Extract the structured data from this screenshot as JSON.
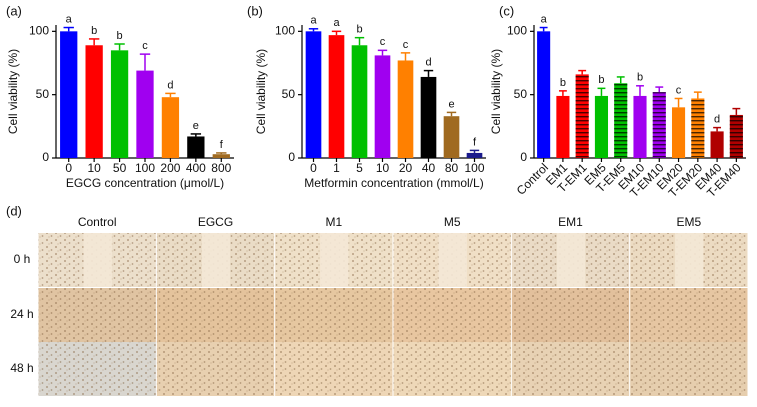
{
  "chart_data": [
    {
      "type": "bar",
      "panel": "(a)",
      "y_label": "Cell viability (%)",
      "x_label": "EGCG concentration (μmol/L)",
      "categories": [
        "0",
        "10",
        "50",
        "100",
        "200",
        "400",
        "800"
      ],
      "values": [
        100,
        89,
        85,
        69,
        48,
        17,
        3
      ],
      "errors": [
        3,
        5,
        5,
        13,
        3,
        2,
        1
      ],
      "annotations": [
        "a",
        "b",
        "b",
        "c",
        "d",
        "e",
        "f"
      ],
      "colors": [
        "#0000ff",
        "#ff0000",
        "#00c000",
        "#a000f0",
        "#ff8000",
        "#000000",
        "#a06a20"
      ],
      "ylim": [
        0,
        105
      ],
      "yticks": [
        0,
        50,
        100
      ]
    },
    {
      "type": "bar",
      "panel": "(b)",
      "y_label": "Cell viability (%)",
      "x_label": "Metformin concentration (mmol/L)",
      "categories": [
        "0",
        "1",
        "5",
        "10",
        "20",
        "40",
        "80",
        "100"
      ],
      "values": [
        100,
        97,
        89,
        81,
        77,
        64,
        33,
        4
      ],
      "errors": [
        2,
        3,
        6,
        4,
        6,
        5,
        3,
        2
      ],
      "annotations": [
        "a",
        "a",
        "b",
        "c",
        "c",
        "d",
        "e",
        "f"
      ],
      "colors": [
        "#0000ff",
        "#ff0000",
        "#00c000",
        "#a000f0",
        "#ff8000",
        "#000000",
        "#a06a20",
        "#1a1a8c"
      ],
      "ylim": [
        0,
        105
      ],
      "yticks": [
        0,
        50,
        100
      ]
    },
    {
      "type": "bar",
      "panel": "(c)",
      "y_label": "Cell viability (%)",
      "categories": [
        "Control",
        "EM1",
        "T-EM1",
        "EM5",
        "T-EM5",
        "EM10",
        "T-EM10",
        "EM20",
        "T-EM20",
        "EM40",
        "T-EM40"
      ],
      "values": [
        100,
        49,
        66,
        49,
        59,
        49,
        52,
        40,
        47,
        21,
        34
      ],
      "errors": [
        3,
        4,
        3,
        6,
        5,
        8,
        4,
        7,
        5,
        3,
        5
      ],
      "annotations": [
        "a",
        "b",
        null,
        "b",
        null,
        "b",
        null,
        "c",
        null,
        "d",
        null
      ],
      "colors": [
        "#0000ff",
        "#ff0000",
        "#ff0000",
        "#00c000",
        "#00c000",
        "#a000f0",
        "#a000f0",
        "#ff8000",
        "#ff8000",
        "#b00000",
        "#b00000"
      ],
      "hatched": [
        false,
        false,
        true,
        false,
        true,
        false,
        true,
        false,
        true,
        false,
        true
      ],
      "ylim": [
        0,
        105
      ],
      "yticks": [
        0,
        50,
        100
      ],
      "rotate_labels": true
    }
  ],
  "panel_d": {
    "label": "(d)",
    "columns": [
      "Control",
      "EGCG",
      "M1",
      "M5",
      "EM1",
      "EM5"
    ],
    "rows": [
      "0 h",
      "24 h",
      "48 h"
    ]
  }
}
